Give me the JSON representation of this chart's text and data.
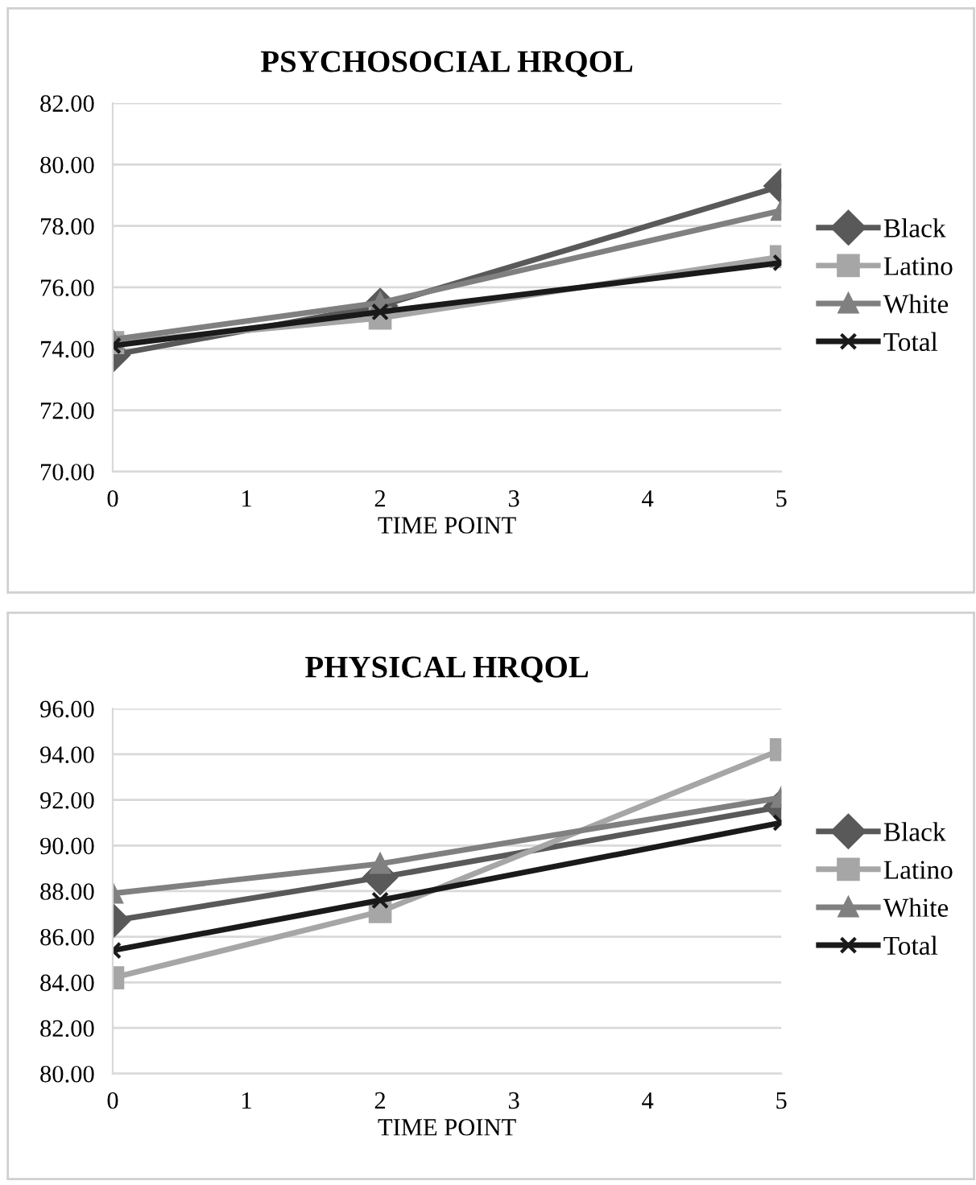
{
  "chart_data": [
    {
      "type": "line",
      "title": "PSYCHOSOCIAL HRQOL",
      "xlabel": "TIME POINT",
      "x": [
        0,
        2,
        5
      ],
      "xlim": [
        0,
        5
      ],
      "xticks": [
        0,
        1,
        2,
        3,
        4,
        5
      ],
      "ylim": [
        70,
        82
      ],
      "yticks": [
        {
          "value": 70,
          "label": "70.00"
        },
        {
          "value": 72,
          "label": "72.00"
        },
        {
          "value": 74,
          "label": "74.00"
        },
        {
          "value": 76,
          "label": "76.00"
        },
        {
          "value": 78,
          "label": "78.00"
        },
        {
          "value": 80,
          "label": "80.00"
        },
        {
          "value": 82,
          "label": "82.00"
        }
      ],
      "grid": "y",
      "legend": "right",
      "series": [
        {
          "name": "Black",
          "color": "#595959",
          "marker": "diamond",
          "values": [
            73.8,
            75.4,
            79.3
          ]
        },
        {
          "name": "Latino",
          "color": "#a6a6a6",
          "marker": "square",
          "values": [
            74.2,
            75.0,
            77.0
          ]
        },
        {
          "name": "White",
          "color": "#808080",
          "marker": "triangle",
          "values": [
            74.3,
            75.5,
            78.5
          ]
        },
        {
          "name": "Total",
          "color": "#1a1a1a",
          "marker": "cross",
          "values": [
            74.1,
            75.2,
            76.8
          ]
        }
      ]
    },
    {
      "type": "line",
      "title": "PHYSICAL HRQOL",
      "xlabel": "TIME POINT",
      "x": [
        0,
        2,
        5
      ],
      "xlim": [
        0,
        5
      ],
      "xticks": [
        0,
        1,
        2,
        3,
        4,
        5
      ],
      "ylim": [
        80,
        96
      ],
      "yticks": [
        {
          "value": 80,
          "label": "80.00"
        },
        {
          "value": 82,
          "label": "82.00"
        },
        {
          "value": 84,
          "label": "84.00"
        },
        {
          "value": 86,
          "label": "86.00"
        },
        {
          "value": 88,
          "label": "88.00"
        },
        {
          "value": 90,
          "label": "90.00"
        },
        {
          "value": 92,
          "label": "92.00"
        },
        {
          "value": 94,
          "label": "94.00"
        },
        {
          "value": 96,
          "label": "96.00"
        }
      ],
      "grid": "y",
      "legend": "right",
      "series": [
        {
          "name": "Black",
          "color": "#595959",
          "marker": "diamond",
          "values": [
            86.7,
            88.6,
            91.7
          ]
        },
        {
          "name": "Latino",
          "color": "#a6a6a6",
          "marker": "square",
          "values": [
            84.2,
            87.1,
            94.2
          ]
        },
        {
          "name": "White",
          "color": "#808080",
          "marker": "triangle",
          "values": [
            87.9,
            89.2,
            92.1
          ]
        },
        {
          "name": "Total",
          "color": "#1a1a1a",
          "marker": "cross",
          "values": [
            85.4,
            87.6,
            91.0
          ]
        }
      ]
    }
  ]
}
